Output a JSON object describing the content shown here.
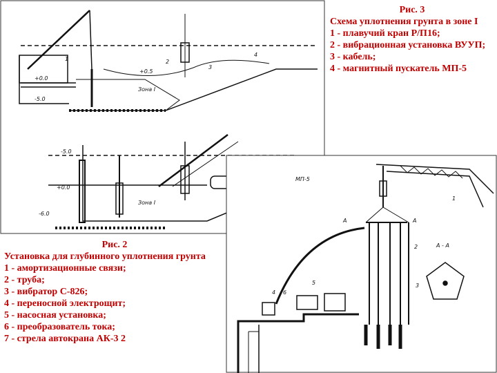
{
  "fig3": {
    "title": "Рис. 3",
    "caption": "Схема уплотнения грунта в зоне I",
    "items": [
      "1 - плавучий кран Р/П16;",
      "2 - вибрационная установка ВУУП;",
      "3 - кабель;",
      "4 - магнитный пускатель МП-5"
    ],
    "labels": [
      "1",
      "2",
      "3",
      "4",
      "+0.5",
      "+0.0",
      "-5.0",
      "Зона I",
      "-5.0",
      "+0.0",
      "-6.0",
      "МП-5",
      "Зона I"
    ]
  },
  "fig2": {
    "title": "Рис. 2",
    "caption": "Установка для глубинного уплотнения грунта",
    "items": [
      "1 - амортизационные связи;",
      "2 - труба;",
      "3 - вибратор С-826;",
      "4 - переносной электрощит;",
      "5 - насосная установка;",
      "6 - преобразователь тока;",
      "7 - стрела автокрана АК-3 2"
    ],
    "labels": [
      "1",
      "А",
      "А",
      "А - А",
      "5",
      "4",
      "6",
      "2",
      "3"
    ]
  }
}
